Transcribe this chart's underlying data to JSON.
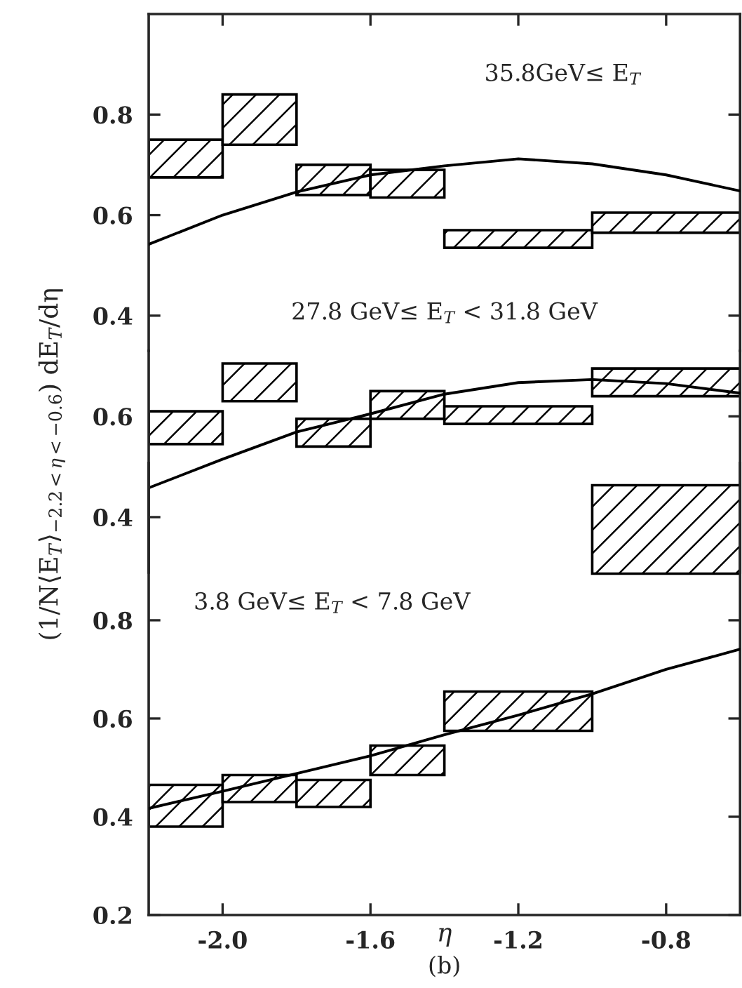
{
  "chart_data": [
    {
      "type": "histogram",
      "xlim": [
        -2.2,
        -0.6
      ],
      "ylim": [
        0.33,
        1.0
      ],
      "yticks": [
        0.4,
        0.6,
        0.8
      ],
      "tick_labels": "y",
      "annotations": [
        "35.8GeV≤ E$_{T}$"
      ],
      "series": [
        {
          "color": "#000000",
          "bins": [
            -2.2,
            -2.0,
            -1.8,
            -1.6,
            -1.4,
            -1.0,
            -0.6
          ],
          "base": [
            0.675,
            0.74,
            0.64,
            0.635,
            0.535,
            0.565
          ],
          "values": [
            0.075,
            0.1,
            0.06,
            0.055,
            0.035,
            0.04
          ]
        },
        {
          "type": "line",
          "color": "#000000",
          "x": [
            -2.2,
            -2.0,
            -1.8,
            -1.6,
            -1.4,
            -1.2,
            -1.0,
            -0.8,
            -0.6
          ],
          "values": [
            0.542,
            0.6,
            0.646,
            0.68,
            0.698,
            0.712,
            0.702,
            0.68,
            0.648
          ]
        }
      ]
    },
    {
      "type": "histogram",
      "xlim": [
        -2.2,
        -0.6
      ],
      "ylim": [
        0.29,
        0.73
      ],
      "yticks": [
        0.4,
        0.6
      ],
      "tick_labels": "y",
      "ylabel": "(1/N⟨E$_{T}$⟩$_{−2.2<η<−0.6}$) dE$_{T}$/dη",
      "annotations": [
        "27.8 GeV≤ E$_{T}$ < 31.8 GeV"
      ],
      "series": [
        {
          "color": "#000000",
          "bins": [
            -2.2,
            -2.0,
            -1.8,
            -1.6,
            -1.4,
            -1.0,
            -0.6
          ],
          "base": [
            0.545,
            0.63,
            0.54,
            0.595,
            0.585,
            0.64
          ],
          "values": [
            0.065,
            0.075,
            0.055,
            0.055,
            0.035,
            0.055
          ]
        },
        {
          "type": "line",
          "color": "#000000",
          "x": [
            -2.2,
            -2.0,
            -1.8,
            -1.6,
            -1.4,
            -1.2,
            -1.0,
            -0.8,
            -0.6
          ],
          "values": [
            0.458,
            0.515,
            0.569,
            0.605,
            0.644,
            0.667,
            0.673,
            0.665,
            0.646
          ]
        }
      ]
    },
    {
      "type": "histogram",
      "xlim": [
        -2.2,
        -0.6
      ],
      "ylim": [
        0.2,
        1.12
      ],
      "yticks": [
        0.2,
        0.4,
        0.6,
        0.8
      ],
      "xticks": [
        {
          "value": -2.0,
          "label": "-2.0"
        },
        {
          "value": -1.6,
          "label": "-1.6"
        },
        {
          "value": -1.2,
          "label": "-1.2"
        },
        {
          "value": -0.8,
          "label": "-0.8"
        }
      ],
      "xlabel": "η",
      "annotations": [
        "3.8 GeV≤ E$_{T}$ < 7.8 GeV",
        "(b)"
      ],
      "series": [
        {
          "color": "#000000",
          "bins": [
            -2.2,
            -2.0,
            -1.8,
            -1.6,
            -1.4,
            -1.0,
            -0.6
          ],
          "base": [
            0.38,
            0.43,
            0.42,
            0.485,
            0.575,
            0.895
          ],
          "values": [
            0.085,
            0.055,
            0.055,
            0.06,
            0.08,
            0.18
          ]
        },
        {
          "type": "line",
          "color": "#000000",
          "x": [
            -2.2,
            -2.0,
            -1.8,
            -1.6,
            -1.4,
            -1.2,
            -1.0,
            -0.8,
            -0.6
          ],
          "values": [
            0.417,
            0.452,
            0.488,
            0.524,
            0.567,
            0.607,
            0.65,
            0.7,
            0.741
          ]
        }
      ]
    }
  ]
}
